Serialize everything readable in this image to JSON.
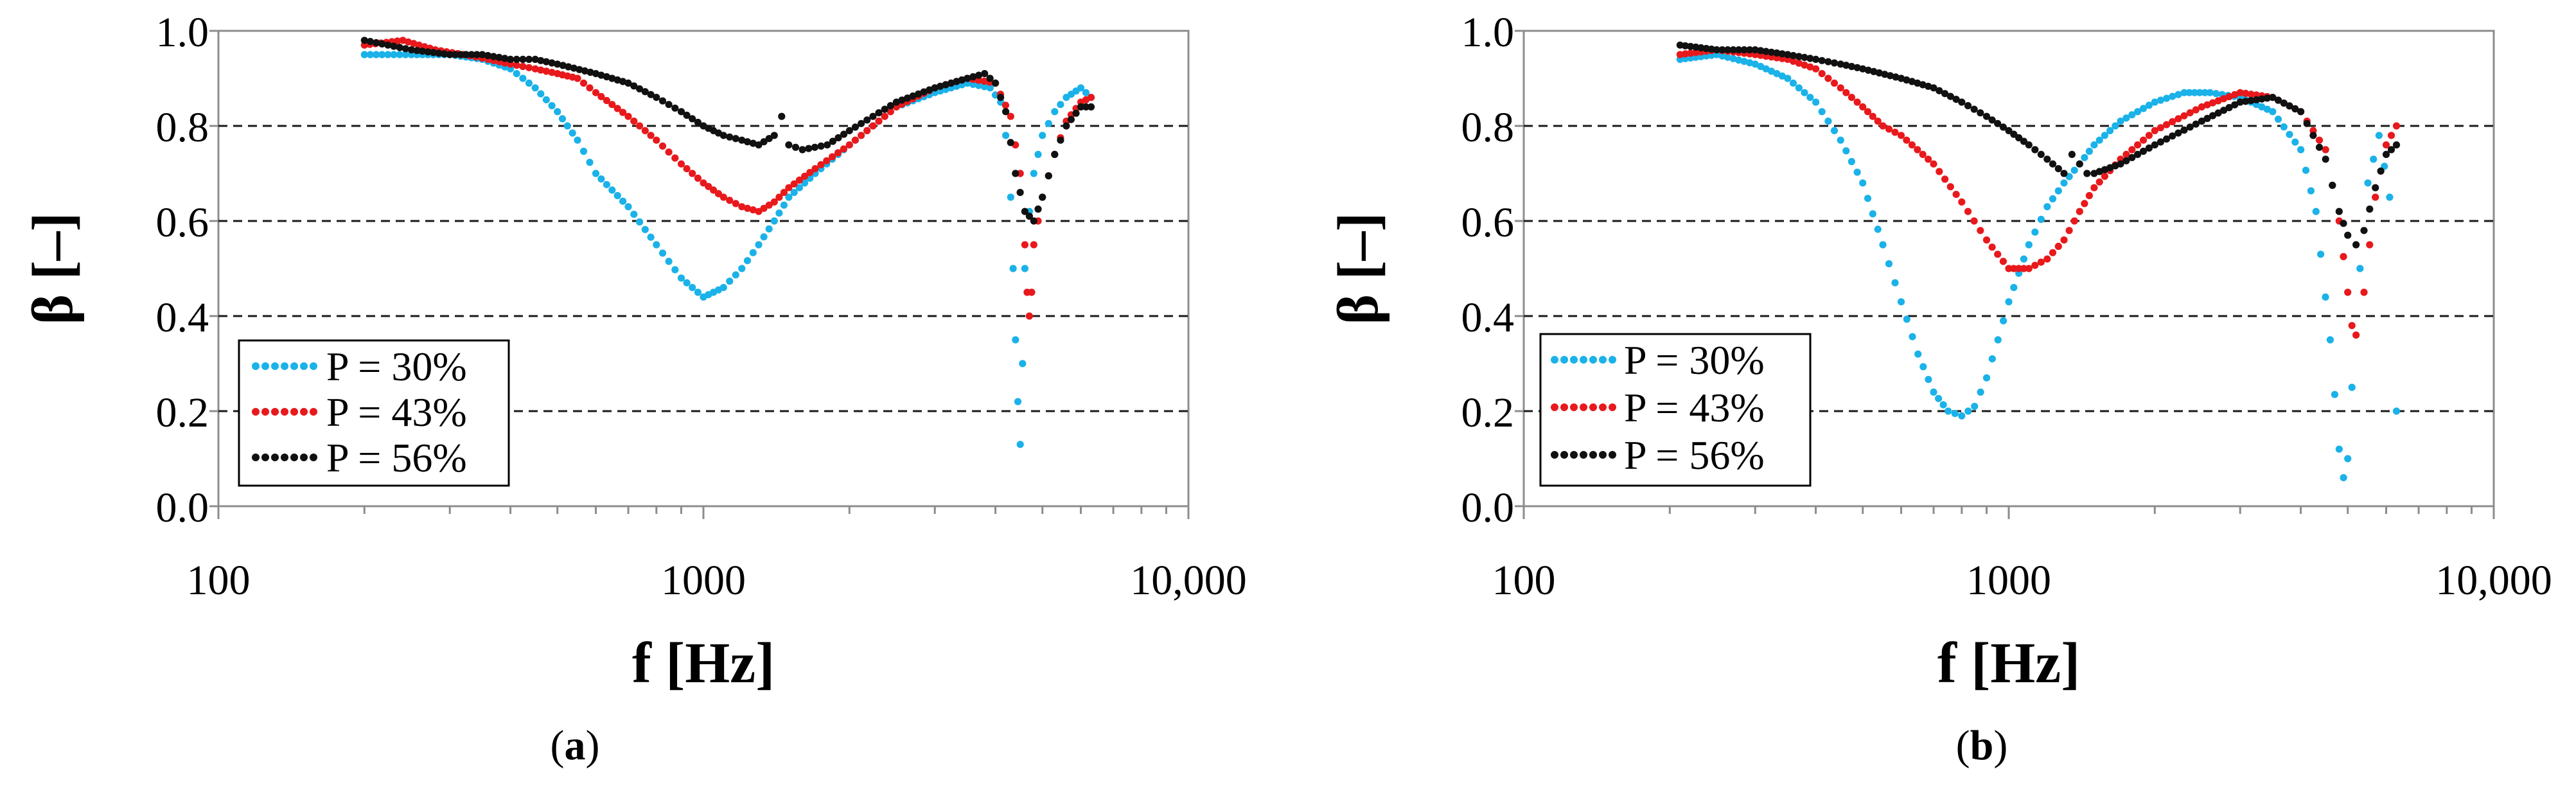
{
  "chart_data": [
    {
      "type": "scatter",
      "panel_label": "a",
      "xlabel": "f [Hz]",
      "ylabel": "β [–]",
      "xscale": "log",
      "xlim": [
        100,
        10000
      ],
      "ylim": [
        0,
        1
      ],
      "x_ticks": [
        100,
        1000,
        10000
      ],
      "x_tick_labels": [
        "100",
        "1000",
        "10,000"
      ],
      "y_ticks": [
        0.0,
        0.2,
        0.4,
        0.6,
        0.8,
        1.0
      ],
      "y_tick_labels": [
        "0.0",
        "0.2",
        "0.4",
        "0.6",
        "0.8",
        "1.0"
      ],
      "grid": "horizontal dashed at 0.2, 0.4, 0.6, 0.8",
      "legend_position": "bottom-left",
      "series": [
        {
          "name": "P = 30%",
          "color": "#1ab2e8",
          "x": [
            200,
            250,
            300,
            350,
            400,
            450,
            500,
            550,
            600,
            700,
            800,
            900,
            1000,
            1100,
            1200,
            1300,
            1400,
            1500,
            1700,
            2000,
            2500,
            3000,
            3500,
            3900,
            4100,
            4200,
            4300,
            4350,
            4400,
            4450,
            4500,
            4550,
            4600,
            4700,
            4800,
            5000,
            5300,
            5600,
            6000,
            6300
          ],
          "y": [
            0.95,
            0.95,
            0.95,
            0.94,
            0.92,
            0.88,
            0.83,
            0.77,
            0.7,
            0.63,
            0.55,
            0.48,
            0.44,
            0.46,
            0.5,
            0.55,
            0.6,
            0.65,
            0.7,
            0.76,
            0.84,
            0.87,
            0.89,
            0.88,
            0.85,
            0.78,
            0.65,
            0.5,
            0.35,
            0.22,
            0.13,
            0.3,
            0.5,
            0.62,
            0.7,
            0.78,
            0.83,
            0.86,
            0.88,
            0.86
          ]
        },
        {
          "name": "P = 43%",
          "color": "#e8191c",
          "x": [
            200,
            240,
            280,
            320,
            360,
            400,
            450,
            500,
            550,
            600,
            700,
            800,
            900,
            1000,
            1100,
            1200,
            1300,
            1400,
            1500,
            1700,
            2000,
            2500,
            3000,
            3500,
            4000,
            4300,
            4500,
            4600,
            4650,
            4700,
            4750,
            4800,
            5000,
            5300,
            5600,
            6000,
            6300
          ],
          "y": [
            0.97,
            0.98,
            0.96,
            0.95,
            0.94,
            0.93,
            0.92,
            0.91,
            0.9,
            0.87,
            0.82,
            0.77,
            0.72,
            0.68,
            0.65,
            0.63,
            0.62,
            0.64,
            0.67,
            0.71,
            0.76,
            0.84,
            0.88,
            0.9,
            0.89,
            0.82,
            0.7,
            0.55,
            0.45,
            0.4,
            0.45,
            0.55,
            0.65,
            0.74,
            0.81,
            0.85,
            0.86
          ]
        },
        {
          "name": "P = 56%",
          "color": "#111111",
          "x": [
            200,
            250,
            300,
            350,
            400,
            450,
            500,
            600,
            700,
            800,
            900,
            1000,
            1100,
            1200,
            1300,
            1400,
            1450,
            1500,
            1600,
            1800,
            2000,
            2500,
            3000,
            3500,
            3800,
            4000,
            4200,
            4400,
            4600,
            4800,
            5000,
            5300,
            5600,
            6000,
            6300
          ],
          "y": [
            0.98,
            0.96,
            0.95,
            0.95,
            0.94,
            0.94,
            0.93,
            0.91,
            0.89,
            0.86,
            0.83,
            0.8,
            0.78,
            0.77,
            0.76,
            0.78,
            0.82,
            0.76,
            0.75,
            0.76,
            0.79,
            0.85,
            0.88,
            0.9,
            0.91,
            0.89,
            0.83,
            0.7,
            0.62,
            0.6,
            0.65,
            0.74,
            0.8,
            0.84,
            0.84
          ]
        }
      ]
    },
    {
      "type": "scatter",
      "panel_label": "b",
      "xlabel": "f [Hz]",
      "ylabel": "β [–]",
      "xscale": "log",
      "xlim": [
        100,
        10000
      ],
      "ylim": [
        0,
        1
      ],
      "x_ticks": [
        100,
        1000,
        10000
      ],
      "x_tick_labels": [
        "100",
        "1000",
        "10,000"
      ],
      "y_ticks": [
        0.0,
        0.2,
        0.4,
        0.6,
        0.8,
        1.0
      ],
      "y_tick_labels": [
        "0.0",
        "0.2",
        "0.4",
        "0.6",
        "0.8",
        "1.0"
      ],
      "grid": "horizontal dashed at 0.2, 0.4, 0.6, 0.8",
      "legend_position": "bottom-left",
      "series": [
        {
          "name": "P = 30%",
          "color": "#1ab2e8",
          "x": [
            210,
            250,
            300,
            350,
            400,
            450,
            500,
            550,
            600,
            650,
            700,
            750,
            800,
            850,
            900,
            950,
            1000,
            1100,
            1200,
            1300,
            1400,
            1500,
            1700,
            2000,
            2300,
            2600,
            3000,
            3500,
            4000,
            4300,
            4600,
            4800,
            4900,
            5000,
            5100,
            5300,
            5500,
            5800,
            6100,
            6300
          ],
          "y": [
            0.94,
            0.95,
            0.93,
            0.9,
            0.85,
            0.77,
            0.68,
            0.55,
            0.43,
            0.32,
            0.24,
            0.2,
            0.19,
            0.21,
            0.27,
            0.35,
            0.43,
            0.55,
            0.63,
            0.68,
            0.72,
            0.76,
            0.81,
            0.85,
            0.87,
            0.87,
            0.86,
            0.83,
            0.75,
            0.62,
            0.35,
            0.12,
            0.06,
            0.1,
            0.25,
            0.5,
            0.68,
            0.78,
            0.65,
            0.2
          ]
        },
        {
          "name": "P = 43%",
          "color": "#e8191c",
          "x": [
            210,
            250,
            300,
            350,
            400,
            450,
            500,
            550,
            600,
            700,
            800,
            900,
            1000,
            1100,
            1200,
            1300,
            1400,
            1500,
            1700,
            2000,
            2500,
            3000,
            3500,
            4000,
            4500,
            4800,
            5000,
            5100,
            5200,
            5400,
            5700,
            6000,
            6300
          ],
          "y": [
            0.95,
            0.96,
            0.95,
            0.94,
            0.92,
            0.88,
            0.84,
            0.8,
            0.78,
            0.72,
            0.64,
            0.56,
            0.5,
            0.5,
            0.52,
            0.56,
            0.62,
            0.67,
            0.73,
            0.79,
            0.84,
            0.87,
            0.86,
            0.83,
            0.75,
            0.6,
            0.45,
            0.38,
            0.36,
            0.45,
            0.65,
            0.76,
            0.8
          ]
        },
        {
          "name": "P = 56%",
          "color": "#111111",
          "x": [
            210,
            250,
            300,
            350,
            400,
            450,
            500,
            600,
            700,
            800,
            900,
            1000,
            1100,
            1200,
            1300,
            1350,
            1400,
            1450,
            1500,
            1700,
            2000,
            2500,
            3000,
            3500,
            4000,
            4500,
            4800,
            5000,
            5200,
            5400,
            5700,
            6000,
            6300
          ],
          "y": [
            0.97,
            0.96,
            0.96,
            0.95,
            0.94,
            0.93,
            0.92,
            0.9,
            0.88,
            0.85,
            0.82,
            0.79,
            0.76,
            0.73,
            0.7,
            0.74,
            0.72,
            0.7,
            0.7,
            0.72,
            0.76,
            0.81,
            0.85,
            0.86,
            0.83,
            0.73,
            0.62,
            0.57,
            0.55,
            0.58,
            0.67,
            0.74,
            0.76
          ]
        }
      ]
    }
  ]
}
